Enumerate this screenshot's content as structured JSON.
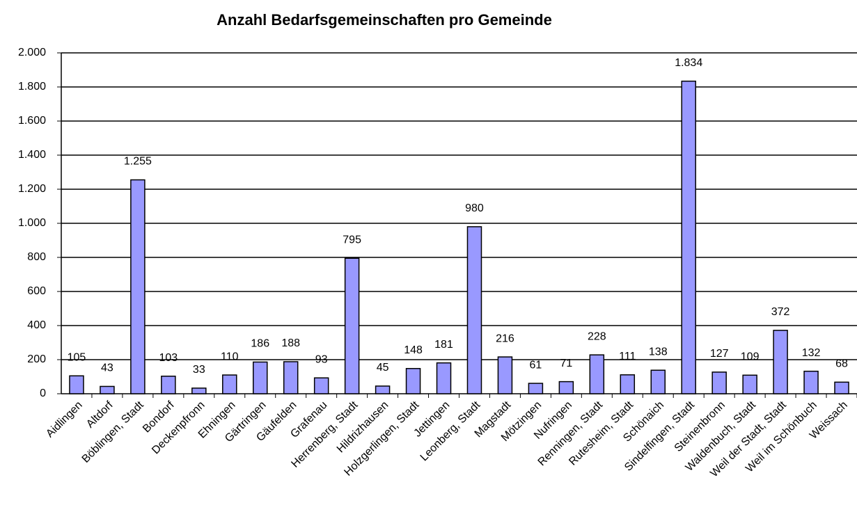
{
  "chart_data": {
    "type": "bar",
    "title": "Anzahl Bedarfsgemeinschaften pro Gemeinde",
    "categories": [
      "Aidlingen",
      "Altdorf",
      "Böblingen, Stadt",
      "Bondorf",
      "Deckenpfronn",
      "Ehningen",
      "Gärtringen",
      "Gäufelden",
      "Grafenau",
      "Herrenberg, Stadt",
      "Hildrizhausen",
      "Holzgerlingen, Stadt",
      "Jettingen",
      "Leonberg, Stadt",
      "Magstadt",
      "Mötzingen",
      "Nufringen",
      "Renningen, Stadt",
      "Rutesheim, Stadt",
      "Schönaich",
      "Sindelfingen, Stadt",
      "Steinenbronn",
      "Waldenbuch, Stadt",
      "Weil der Stadt, Stadt",
      "Weil im Schönbuch",
      "Weissach"
    ],
    "values": [
      105,
      43,
      1255,
      103,
      33,
      110,
      186,
      188,
      93,
      795,
      45,
      148,
      181,
      980,
      216,
      61,
      71,
      228,
      111,
      138,
      1834,
      127,
      109,
      372,
      132,
      68
    ],
    "value_labels": [
      "105",
      "43",
      "1.255",
      "103",
      "33",
      "110",
      "186",
      "188",
      "93",
      "795",
      "45",
      "148",
      "181",
      "980",
      "216",
      "61",
      "71",
      "228",
      "111",
      "138",
      "1.834",
      "127",
      "109",
      "372",
      "132",
      "68"
    ],
    "color": "#9999ff",
    "ylim": [
      0,
      2000
    ],
    "yticks": [
      0,
      200,
      400,
      600,
      800,
      {
        "value": 1000,
        "label": "1.000"
      },
      {
        "value": 1200,
        "label": "1.200"
      },
      {
        "value": 1400,
        "label": "1.400"
      },
      {
        "value": 1600,
        "label": "1.600"
      },
      {
        "value": 1800,
        "label": "1.800"
      },
      {
        "value": 2000,
        "label": "2.000"
      }
    ],
    "grid": true
  }
}
